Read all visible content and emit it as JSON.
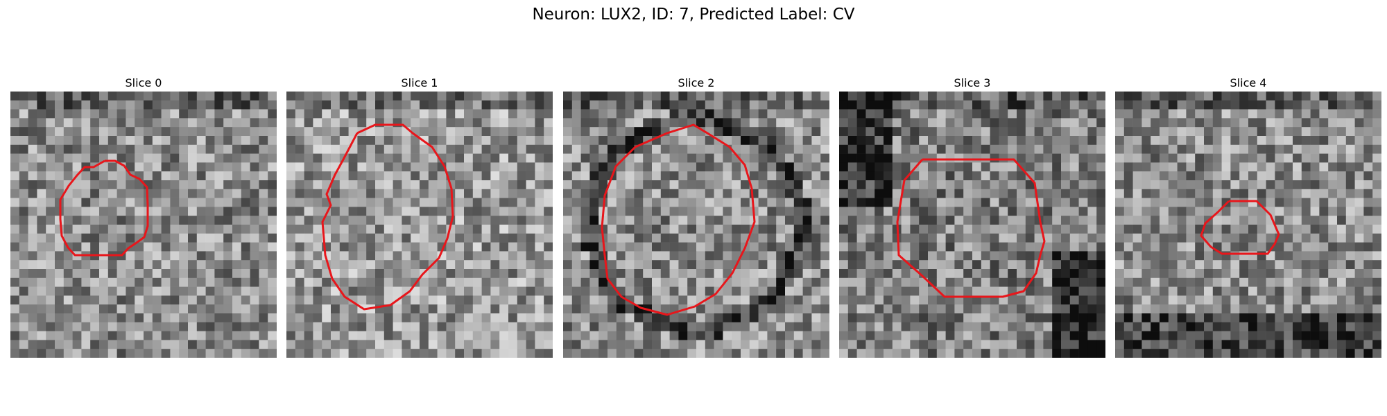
{
  "figure": {
    "title": "Neuron: LUX2, ID: 7, Predicted Label: CV"
  },
  "colors": {
    "contour": "#e8161b",
    "background": "#ffffff",
    "colormap": "gray"
  },
  "panels": [
    {
      "title": "Slice 0",
      "seed": 11,
      "base": 0.55,
      "contour_shape": "small-octagon",
      "icon": "em-slice-image"
    },
    {
      "title": "Slice 1",
      "seed": 23,
      "base": 0.6,
      "contour_shape": "large-circle",
      "icon": "em-slice-image"
    },
    {
      "title": "Slice 2",
      "seed": 37,
      "base": 0.55,
      "contour_shape": "large-circle-dark-ring",
      "icon": "em-slice-image"
    },
    {
      "title": "Slice 3",
      "seed": 41,
      "base": 0.5,
      "contour_shape": "octagon-dark-corners",
      "icon": "em-slice-image"
    },
    {
      "title": "Slice 4",
      "seed": 53,
      "base": 0.55,
      "contour_shape": "small-hexagon",
      "icon": "em-slice-image"
    }
  ]
}
